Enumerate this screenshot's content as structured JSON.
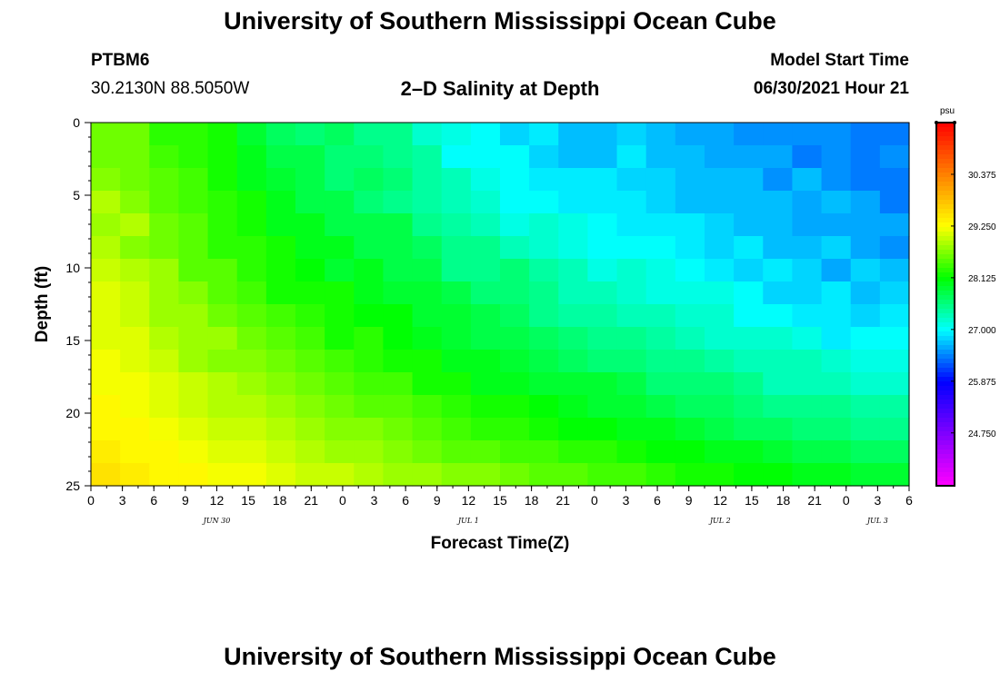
{
  "header": {
    "title": "University of Southern Mississippi Ocean Cube",
    "station_id": "PTBM6",
    "station_coords": "30.2130N  88.5050W",
    "chart_title": "2–D Salinity at Depth",
    "model_label": "Model Start Time",
    "model_time": "06/30/2021 Hour 21"
  },
  "footer": {
    "title": "University of Southern Mississippi Ocean Cube"
  },
  "chart_data": {
    "type": "heatmap",
    "title": "2–D Salinity at Depth",
    "xlabel": "Forecast Time(Z)",
    "ylabel": "Depth (ft)",
    "x_tick_labels": [
      "0",
      "3",
      "6",
      "9",
      "12",
      "15",
      "18",
      "21",
      "0",
      "3",
      "6",
      "9",
      "12",
      "15",
      "18",
      "21",
      "0",
      "3",
      "6",
      "9",
      "12",
      "15",
      "18",
      "21",
      "0",
      "3",
      "6"
    ],
    "x_range_hours": [
      0,
      78
    ],
    "date_labels": [
      {
        "label": "JUN 30",
        "hour": 12
      },
      {
        "label": "JUL 1",
        "hour": 36
      },
      {
        "label": "JUL 2",
        "hour": 60
      },
      {
        "label": "JUL 3",
        "hour": 75
      }
    ],
    "y_ticks": [
      0,
      5,
      10,
      15,
      20,
      25
    ],
    "y_range_ft": [
      0,
      25
    ],
    "y_inverted": true,
    "colorbar": {
      "unit": "psu",
      "tick_labels": [
        "30.375",
        "29.250",
        "28.125",
        "27.000",
        "25.875",
        "24.750"
      ],
      "range": [
        23.6,
        31.5
      ],
      "colors": [
        "#ff00ff",
        "#8000ff",
        "#0000ff",
        "#00ffff",
        "#00ff00",
        "#ffff00",
        "#ff8000",
        "#ff0000"
      ]
    },
    "salinity_psu": [
      [
        28.6,
        28.6,
        28.3,
        28.3,
        28.2,
        27.9,
        27.7,
        27.6,
        27.7,
        27.5,
        27.5,
        27.2,
        27.1,
        27.0,
        26.8,
        26.9,
        26.7,
        26.7,
        26.8,
        26.7,
        26.6,
        26.6,
        26.5,
        26.5,
        26.5,
        26.5,
        26.4,
        26.4
      ],
      [
        28.6,
        28.6,
        28.4,
        28.3,
        28.2,
        28.0,
        27.8,
        27.8,
        27.6,
        27.6,
        27.5,
        27.4,
        27.0,
        27.0,
        27.0,
        26.8,
        26.7,
        26.7,
        26.9,
        26.7,
        26.7,
        26.6,
        26.6,
        26.6,
        26.4,
        26.5,
        26.4,
        26.5
      ],
      [
        28.7,
        28.6,
        28.5,
        28.4,
        28.2,
        28.0,
        27.9,
        27.8,
        27.6,
        27.7,
        27.6,
        27.4,
        27.3,
        27.1,
        27.0,
        26.9,
        26.9,
        26.9,
        26.8,
        26.8,
        26.7,
        26.7,
        26.7,
        26.5,
        26.7,
        26.5,
        26.4,
        26.4
      ],
      [
        28.9,
        28.7,
        28.5,
        28.4,
        28.3,
        28.2,
        28.0,
        27.8,
        27.8,
        27.6,
        27.5,
        27.4,
        27.3,
        27.2,
        27.0,
        27.0,
        26.9,
        26.9,
        26.9,
        26.8,
        26.7,
        26.7,
        26.7,
        26.7,
        26.6,
        26.7,
        26.6,
        26.4
      ],
      [
        28.8,
        28.9,
        28.6,
        28.5,
        28.3,
        28.2,
        28.0,
        28.0,
        27.8,
        27.8,
        27.8,
        27.5,
        27.4,
        27.3,
        27.1,
        27.2,
        27.1,
        27.0,
        26.9,
        26.9,
        26.9,
        26.8,
        26.7,
        26.7,
        26.6,
        26.6,
        26.6,
        26.6
      ],
      [
        28.9,
        28.7,
        28.6,
        28.5,
        28.3,
        28.3,
        28.2,
        28.0,
        28.0,
        27.8,
        27.8,
        27.7,
        27.5,
        27.5,
        27.3,
        27.2,
        27.1,
        27.0,
        27.0,
        27.0,
        26.9,
        26.8,
        26.9,
        26.7,
        26.7,
        26.8,
        26.6,
        26.5
      ],
      [
        29.0,
        28.9,
        28.8,
        28.5,
        28.5,
        28.3,
        28.2,
        28.1,
        27.9,
        28.0,
        27.8,
        27.8,
        27.5,
        27.5,
        27.6,
        27.4,
        27.3,
        27.1,
        27.2,
        27.1,
        27.0,
        26.9,
        26.8,
        26.9,
        26.8,
        26.6,
        26.8,
        26.7
      ],
      [
        29.1,
        29.0,
        28.8,
        28.7,
        28.5,
        28.4,
        28.2,
        28.2,
        28.2,
        28.0,
        27.9,
        27.9,
        27.8,
        27.6,
        27.6,
        27.5,
        27.3,
        27.3,
        27.2,
        27.1,
        27.1,
        27.1,
        27.0,
        26.8,
        26.8,
        26.9,
        26.7,
        26.8
      ],
      [
        29.1,
        29.0,
        28.8,
        28.8,
        28.6,
        28.5,
        28.4,
        28.3,
        28.2,
        28.1,
        28.1,
        27.9,
        27.9,
        27.8,
        27.7,
        27.5,
        27.4,
        27.4,
        27.3,
        27.3,
        27.2,
        27.2,
        27.0,
        27.0,
        26.9,
        26.9,
        26.8,
        26.9
      ],
      [
        29.1,
        29.1,
        28.9,
        28.8,
        28.8,
        28.6,
        28.5,
        28.4,
        28.2,
        28.3,
        28.1,
        28.0,
        27.9,
        27.8,
        27.8,
        27.7,
        27.6,
        27.5,
        27.5,
        27.4,
        27.3,
        27.2,
        27.2,
        27.2,
        27.1,
        26.9,
        27.0,
        27.0
      ],
      [
        29.2,
        29.1,
        29.0,
        28.8,
        28.7,
        28.7,
        28.6,
        28.5,
        28.4,
        28.3,
        28.2,
        28.2,
        28.0,
        28.0,
        27.9,
        27.8,
        27.7,
        27.6,
        27.6,
        27.5,
        27.5,
        27.4,
        27.3,
        27.3,
        27.3,
        27.2,
        27.1,
        27.1
      ],
      [
        29.2,
        29.2,
        29.1,
        29.0,
        28.9,
        28.8,
        28.7,
        28.6,
        28.5,
        28.4,
        28.4,
        28.2,
        28.2,
        28.0,
        28.0,
        27.9,
        27.9,
        27.9,
        27.8,
        27.6,
        27.6,
        27.6,
        27.5,
        27.3,
        27.3,
        27.3,
        27.2,
        27.2
      ],
      [
        29.3,
        29.2,
        29.1,
        29.0,
        28.9,
        28.9,
        28.8,
        28.7,
        28.6,
        28.5,
        28.5,
        28.4,
        28.3,
        28.2,
        28.2,
        28.1,
        28.0,
        27.9,
        27.9,
        27.8,
        27.7,
        27.7,
        27.6,
        27.5,
        27.5,
        27.5,
        27.4,
        27.4
      ],
      [
        29.3,
        29.3,
        29.2,
        29.1,
        29.0,
        29.0,
        28.9,
        28.8,
        28.7,
        28.7,
        28.6,
        28.5,
        28.4,
        28.3,
        28.3,
        28.2,
        28.1,
        28.1,
        28.0,
        28.0,
        27.9,
        27.8,
        27.7,
        27.7,
        27.6,
        27.6,
        27.5,
        27.5
      ],
      [
        29.4,
        29.3,
        29.3,
        29.2,
        29.1,
        29.1,
        29.0,
        28.9,
        28.8,
        28.8,
        28.7,
        28.6,
        28.5,
        28.5,
        28.4,
        28.4,
        28.3,
        28.3,
        28.2,
        28.1,
        28.1,
        28.0,
        28.0,
        27.9,
        27.8,
        27.8,
        27.7,
        27.7
      ],
      [
        29.5,
        29.4,
        29.3,
        29.3,
        29.2,
        29.2,
        29.1,
        29.0,
        29.0,
        28.9,
        28.8,
        28.8,
        28.7,
        28.7,
        28.6,
        28.5,
        28.5,
        28.4,
        28.4,
        28.3,
        28.2,
        28.2,
        28.1,
        28.1,
        28.0,
        28.0,
        27.9,
        27.9
      ]
    ]
  }
}
